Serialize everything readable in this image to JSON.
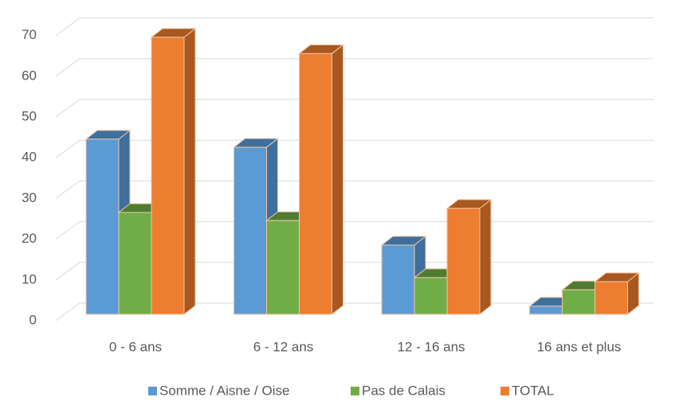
{
  "chart_data": {
    "type": "bar3d",
    "categories": [
      "0 - 6 ans",
      "6 - 12 ans",
      "12 - 16 ans",
      "16 ans et plus"
    ],
    "series": [
      {
        "name": "Somme / Aisne / Oise",
        "color": "#5b9bd5",
        "side_color": "#3f6f9c",
        "values": [
          43,
          41,
          17,
          2
        ]
      },
      {
        "name": "Pas de Calais",
        "color": "#70ad47",
        "side_color": "#4e7d31",
        "values": [
          25,
          23,
          9,
          6
        ]
      },
      {
        "name": "TOTAL",
        "color": "#ed7d31",
        "side_color": "#a9581f",
        "values": [
          68,
          64,
          26,
          8
        ]
      }
    ],
    "ylim": [
      0,
      70
    ],
    "yticks": [
      0,
      10,
      20,
      30,
      40,
      50,
      60,
      70
    ],
    "grid": true,
    "legend": "bottom"
  }
}
